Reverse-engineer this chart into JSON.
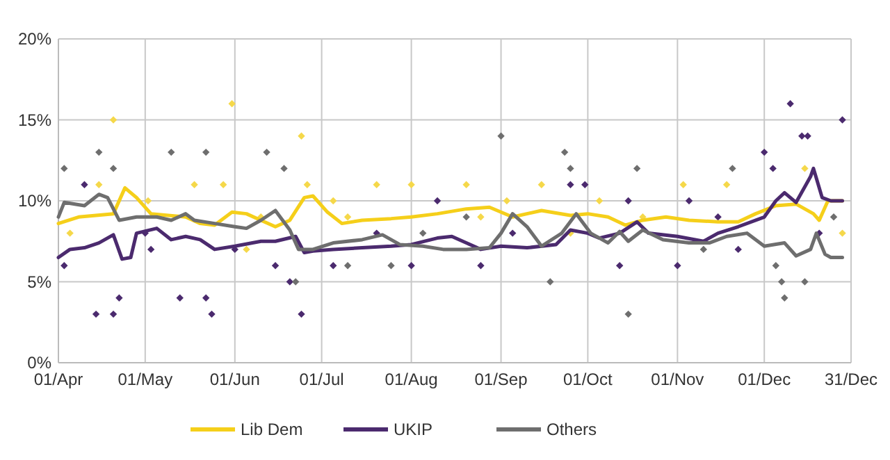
{
  "chart_data": {
    "type": "line",
    "ylim": [
      0,
      20
    ],
    "yticks": [
      {
        "value": 0,
        "label": "0%"
      },
      {
        "value": 5,
        "label": "5%"
      },
      {
        "value": 10,
        "label": "10%"
      },
      {
        "value": 15,
        "label": "15%"
      },
      {
        "value": 20,
        "label": "20%"
      }
    ],
    "xlim": [
      "--04-01",
      "--12-31"
    ],
    "xticks": [
      {
        "value": "--04-01",
        "label": "01/Apr"
      },
      {
        "value": "--05-01",
        "label": "01/May"
      },
      {
        "value": "--06-01",
        "label": "01/Jun"
      },
      {
        "value": "--07-01",
        "label": "01/Jul"
      },
      {
        "value": "--08-01",
        "label": "01/Aug"
      },
      {
        "value": "--09-01",
        "label": "01/Sep"
      },
      {
        "value": "--10-01",
        "label": "01/Oct"
      },
      {
        "value": "--11-01",
        "label": "01/Nov"
      },
      {
        "value": "--12-01",
        "label": "01/Dec"
      },
      {
        "value": "--12-31",
        "label": "31/Dec"
      }
    ],
    "grid": true,
    "legend": "bottom",
    "series": [
      {
        "type": "scatter",
        "marker": "diamond",
        "color": "#f5d84a",
        "x": [
          "--04-05",
          "--04-15",
          "--04-20",
          "--05-02",
          "--05-18",
          "--05-28",
          "--05-31",
          "--06-05",
          "--06-10",
          "--06-24",
          "--06-26",
          "--07-05",
          "--07-10",
          "--07-20",
          "--08-01",
          "--08-20",
          "--08-25",
          "--09-03",
          "--09-15",
          "--09-25",
          "--10-05",
          "--10-20",
          "--11-03",
          "--11-18",
          "--12-15",
          "--12-28"
        ],
        "values": [
          8,
          11,
          15,
          10,
          11,
          11,
          16,
          7,
          9,
          14,
          11,
          10,
          9,
          11,
          11,
          11,
          9,
          10,
          11,
          8,
          10,
          9,
          11,
          11,
          12,
          8
        ]
      },
      {
        "type": "scatter",
        "marker": "diamond",
        "color": "#4b2a6e",
        "x": [
          "--04-03",
          "--04-10",
          "--04-14",
          "--04-20",
          "--04-22",
          "--05-01",
          "--05-03",
          "--05-13",
          "--05-22",
          "--05-24",
          "--06-01",
          "--06-15",
          "--06-20",
          "--06-24",
          "--07-05",
          "--07-20",
          "--08-01",
          "--08-10",
          "--08-25",
          "--09-05",
          "--09-25",
          "--09-30",
          "--10-12",
          "--10-15",
          "--11-01",
          "--11-05",
          "--11-15",
          "--11-22",
          "--12-01",
          "--12-04",
          "--12-10",
          "--12-14",
          "--12-16",
          "--12-20",
          "--12-28"
        ],
        "values": [
          6,
          11,
          3,
          3,
          4,
          8,
          7,
          4,
          4,
          3,
          7,
          6,
          5,
          3,
          6,
          8,
          6,
          10,
          6,
          8,
          11,
          11,
          6,
          10,
          6,
          10,
          9,
          7,
          13,
          12,
          16,
          14,
          14,
          8,
          15
        ]
      },
      {
        "type": "scatter",
        "marker": "diamond",
        "color": "#6e6e6e",
        "x": [
          "--04-03",
          "--04-15",
          "--04-20",
          "--05-10",
          "--05-22",
          "--06-12",
          "--06-18",
          "--06-22",
          "--07-10",
          "--07-25",
          "--08-05",
          "--08-20",
          "--09-01",
          "--09-18",
          "--09-23",
          "--09-25",
          "--10-15",
          "--10-18",
          "--11-10",
          "--11-20",
          "--12-05",
          "--12-07",
          "--12-08",
          "--12-15",
          "--12-25"
        ],
        "values": [
          12,
          13,
          12,
          13,
          13,
          13,
          12,
          5,
          6,
          6,
          8,
          9,
          14,
          5,
          13,
          12,
          3,
          12,
          7,
          12,
          6,
          5,
          4,
          5,
          9
        ]
      },
      {
        "name": "Lib Dem",
        "color": "#f5cf1a",
        "x": [
          "--04-01",
          "--04-08",
          "--04-20",
          "--04-24",
          "--04-28",
          "--05-03",
          "--05-15",
          "--05-20",
          "--05-25",
          "--05-31",
          "--06-05",
          "--06-10",
          "--06-15",
          "--06-20",
          "--06-25",
          "--06-28",
          "--07-03",
          "--07-08",
          "--07-15",
          "--07-25",
          "--08-01",
          "--08-10",
          "--08-20",
          "--08-28",
          "--09-05",
          "--09-15",
          "--09-25",
          "--10-01",
          "--10-08",
          "--10-14",
          "--10-20",
          "--10-28",
          "--11-05",
          "--11-15",
          "--11-22",
          "--11-28",
          "--12-05",
          "--12-12",
          "--12-18",
          "--12-20",
          "--12-23",
          "--12-28"
        ],
        "values": [
          8.6,
          9,
          9.2,
          10.8,
          10.2,
          9.2,
          9,
          8.6,
          8.5,
          9.3,
          9.2,
          8.8,
          8.4,
          8.8,
          10.2,
          10.3,
          9.3,
          8.6,
          8.8,
          8.9,
          9,
          9.2,
          9.5,
          9.6,
          9,
          9.4,
          9.1,
          9.2,
          9,
          8.5,
          8.8,
          9,
          8.8,
          8.7,
          8.7,
          9.2,
          9.7,
          9.8,
          9.2,
          8.8,
          10,
          10
        ]
      },
      {
        "name": "UKIP",
        "color": "#4b2a6e",
        "x": [
          "--04-01",
          "--04-05",
          "--04-10",
          "--04-15",
          "--04-20",
          "--04-23",
          "--04-26",
          "--04-28",
          "--05-05",
          "--05-10",
          "--05-15",
          "--05-20",
          "--05-25",
          "--06-01",
          "--06-10",
          "--06-15",
          "--06-22",
          "--06-25",
          "--06-28",
          "--07-05",
          "--07-15",
          "--07-25",
          "--08-01",
          "--08-10",
          "--08-15",
          "--08-20",
          "--08-25",
          "--09-01",
          "--09-10",
          "--09-20",
          "--09-25",
          "--10-01",
          "--10-05",
          "--10-12",
          "--10-18",
          "--10-22",
          "--11-01",
          "--11-10",
          "--11-15",
          "--11-22",
          "--12-01",
          "--12-05",
          "--12-08",
          "--12-12",
          "--12-17",
          "--12-18",
          "--12-21",
          "--12-24",
          "--12-28"
        ],
        "values": [
          6.5,
          7,
          7.1,
          7.4,
          7.9,
          6.4,
          6.5,
          8,
          8.3,
          7.6,
          7.8,
          7.6,
          7,
          7.2,
          7.5,
          7.5,
          7.8,
          6.8,
          6.9,
          7,
          7.1,
          7.2,
          7.3,
          7.7,
          7.8,
          7.4,
          7,
          7.2,
          7.1,
          7.3,
          8.2,
          8,
          7.7,
          8,
          8.7,
          8,
          7.8,
          7.5,
          8,
          8.4,
          9,
          10,
          10.5,
          9.9,
          11.5,
          12,
          10.2,
          10,
          10
        ]
      },
      {
        "name": "Others",
        "color": "#6e6e6e",
        "x": [
          "--04-01",
          "--04-03",
          "--04-10",
          "--04-15",
          "--04-18",
          "--04-22",
          "--04-28",
          "--05-05",
          "--05-10",
          "--05-15",
          "--05-18",
          "--05-25",
          "--06-01",
          "--06-05",
          "--06-10",
          "--06-15",
          "--06-20",
          "--06-23",
          "--06-28",
          "--07-05",
          "--07-15",
          "--07-22",
          "--07-28",
          "--08-05",
          "--08-12",
          "--08-20",
          "--08-28",
          "--09-01",
          "--09-05",
          "--09-10",
          "--09-15",
          "--09-22",
          "--09-27",
          "--10-02",
          "--10-08",
          "--10-12",
          "--10-15",
          "--10-20",
          "--10-27",
          "--11-05",
          "--11-12",
          "--11-18",
          "--11-25",
          "--12-01",
          "--12-08",
          "--12-12",
          "--12-17",
          "--12-19",
          "--12-22",
          "--12-24",
          "--12-28"
        ],
        "values": [
          9,
          9.9,
          9.7,
          10.4,
          10.2,
          8.8,
          9,
          9,
          8.8,
          9.2,
          8.8,
          8.6,
          8.4,
          8.3,
          8.8,
          9.4,
          8.2,
          7,
          7,
          7.4,
          7.6,
          7.9,
          7.3,
          7.2,
          7,
          7,
          7.1,
          8,
          9.2,
          8.4,
          7.2,
          8,
          9.2,
          8,
          7.4,
          8.1,
          7.5,
          8.2,
          7.6,
          7.4,
          7.4,
          7.8,
          8,
          7.2,
          7.4,
          6.6,
          7,
          8,
          6.7,
          6.5,
          6.5
        ]
      }
    ]
  }
}
